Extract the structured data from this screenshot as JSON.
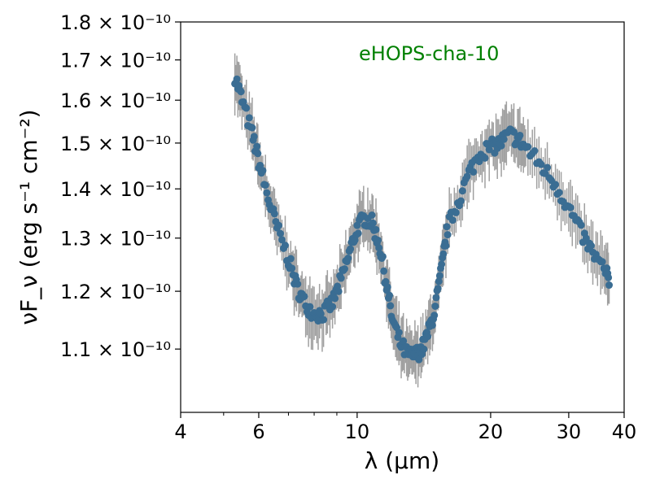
{
  "chart_data": {
    "type": "scatter",
    "title": "",
    "annotation": {
      "text": "eHOPS-cha-10",
      "color": "#008000"
    },
    "xlabel": "λ (μm)",
    "ylabel": "νF_ν (erg s⁻¹ cm⁻²)",
    "xscale": "log",
    "yscale": "log",
    "xlim": [
      4,
      40
    ],
    "ylim": [
      1e-10,
      1.8e-10
    ],
    "grid": false,
    "x_ticks": [
      {
        "value": 4,
        "label": "4"
      },
      {
        "value": 6,
        "label": "6"
      },
      {
        "value": 10,
        "label": "10"
      },
      {
        "value": 20,
        "label": "20"
      },
      {
        "value": 30,
        "label": "30"
      },
      {
        "value": 40,
        "label": "40"
      }
    ],
    "x_minor_ticks": [
      5,
      7,
      8,
      9
    ],
    "y_ticks": [
      {
        "value": 1.1e-10,
        "mant": "1.1",
        "label": "1.1 × 10⁻¹⁰"
      },
      {
        "value": 1.2e-10,
        "mant": "1.2",
        "label": "1.2 × 10⁻¹⁰"
      },
      {
        "value": 1.3e-10,
        "mant": "1.3",
        "label": "1.3 × 10⁻¹⁰"
      },
      {
        "value": 1.4e-10,
        "mant": "1.4",
        "label": "1.4 × 10⁻¹⁰"
      },
      {
        "value": 1.5e-10,
        "mant": "1.5",
        "label": "1.5 × 10⁻¹⁰"
      },
      {
        "value": 1.6e-10,
        "mant": "1.6",
        "label": "1.6 × 10⁻¹⁰"
      },
      {
        "value": 1.7e-10,
        "mant": "1.7",
        "label": "1.7 × 10⁻¹⁰"
      },
      {
        "value": 1.8e-10,
        "mant": "1.8",
        "label": "1.8 × 10⁻¹⁰"
      }
    ],
    "marker_color": "#3a6d93",
    "errorbar_color": "#a0a0a0",
    "error_fraction": 0.035,
    "spectrum_nodes": {
      "x": [
        5.3,
        5.5,
        5.8,
        6.0,
        6.3,
        6.6,
        7.0,
        7.3,
        7.6,
        8.0,
        8.4,
        8.8,
        9.2,
        9.6,
        10.0,
        10.4,
        10.8,
        11.2,
        11.6,
        12.0,
        12.5,
        13.0,
        13.5,
        14.0,
        14.5,
        15.0,
        15.5,
        16.0,
        17.0,
        18.0,
        19.0,
        20.0,
        21.0,
        22.0,
        23.0,
        24.0,
        26.0,
        28.0,
        30.0,
        32.0,
        34.0,
        36.0,
        37.0
      ],
      "y": [
        1.66e-10,
        1.6e-10,
        1.52e-10,
        1.46e-10,
        1.38e-10,
        1.32e-10,
        1.26e-10,
        1.21e-10,
        1.18e-10,
        1.16e-10,
        1.16e-10,
        1.18e-10,
        1.22e-10,
        1.27e-10,
        1.32e-10,
        1.34e-10,
        1.33e-10,
        1.29e-10,
        1.22e-10,
        1.15e-10,
        1.11e-10,
        1.09e-10,
        1.09e-10,
        1.1e-10,
        1.13e-10,
        1.17e-10,
        1.24e-10,
        1.32e-10,
        1.38e-10,
        1.44e-10,
        1.48e-10,
        1.49e-10,
        1.5e-10,
        1.52e-10,
        1.51e-10,
        1.49e-10,
        1.45e-10,
        1.41e-10,
        1.36e-10,
        1.31e-10,
        1.27e-10,
        1.24e-10,
        1.22e-10
      ]
    },
    "series": [
      {
        "name": "",
        "points_per_node_span": 7,
        "scatter_fraction": 0.012
      }
    ]
  }
}
